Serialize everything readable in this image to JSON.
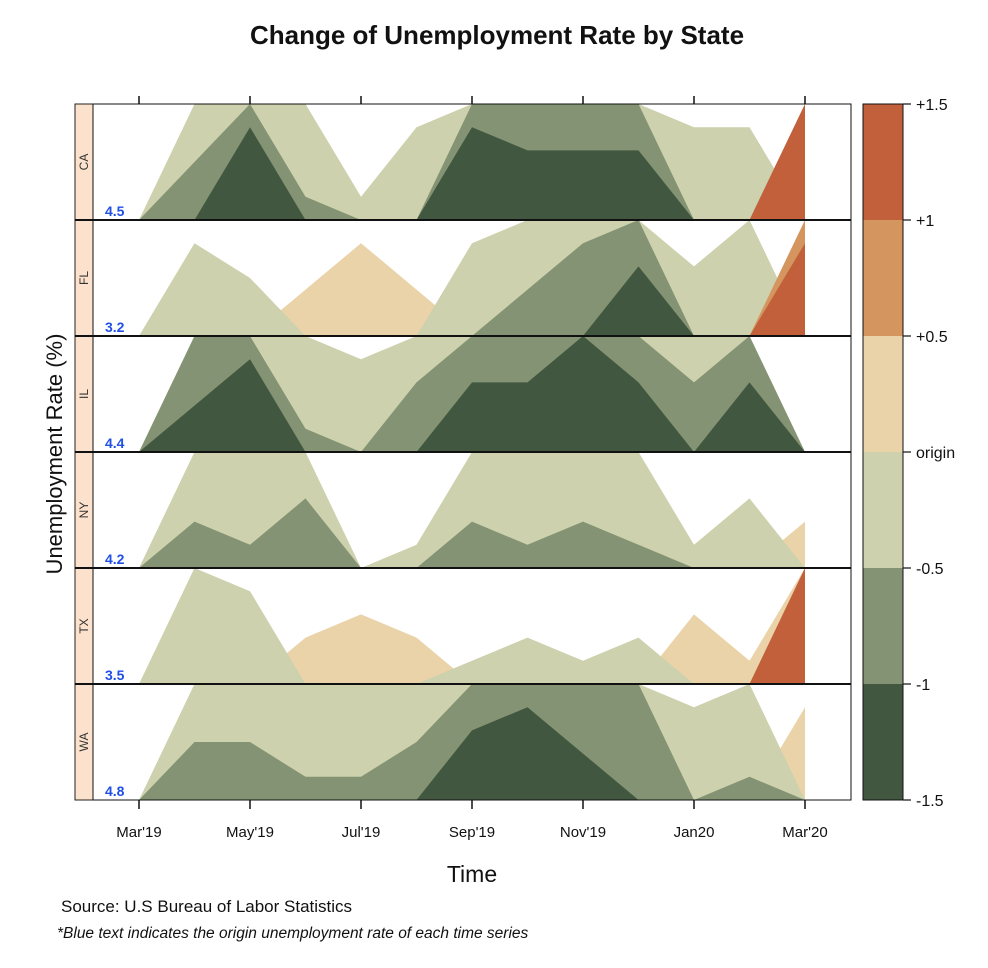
{
  "chart_data": {
    "type": "area",
    "subtype": "horizon",
    "title": "Change of Unemployment Rate by State",
    "xlabel": "Time",
    "ylabel": "Unemployment Rate (%)",
    "x_dates": [
      "2019-03",
      "2019-04",
      "2019-05",
      "2019-06",
      "2019-07",
      "2019-08",
      "2019-09",
      "2019-10",
      "2019-11",
      "2019-12",
      "2020-01",
      "2020-02",
      "2020-03"
    ],
    "x_tick_labels": [
      "Mar'19",
      "May'19",
      "Jul'19",
      "Sep'19",
      "Nov'19",
      "Jan20",
      "Mar'20"
    ],
    "band_unit": 0.5,
    "ylim": [
      -1.5,
      1.5
    ],
    "series": [
      {
        "name": "CA",
        "origin_label": "4.5",
        "values": [
          0,
          -0.75,
          -1.4,
          -0.6,
          -0.1,
          -0.4,
          -1.4,
          -1.3,
          -1.3,
          -1.3,
          -0.4,
          -0.4,
          1.5
        ]
      },
      {
        "name": "FL",
        "origin_label": "3.2",
        "values": [
          0,
          -0.4,
          -0.25,
          0.2,
          0.4,
          0.2,
          -0.4,
          -0.7,
          -0.9,
          -1.3,
          -0.3,
          -0.5,
          1.4
        ]
      },
      {
        "name": "IL",
        "origin_label": "4.4",
        "values": [
          0,
          -1.2,
          -1.4,
          -0.6,
          -0.4,
          -0.8,
          -1.3,
          -1.3,
          -1.5,
          -1.3,
          -0.8,
          -1.3,
          0
        ]
      },
      {
        "name": "NY",
        "origin_label": "4.2",
        "values": [
          0,
          -0.7,
          -0.6,
          -0.8,
          0,
          -0.1,
          -0.7,
          -0.6,
          -0.7,
          -0.6,
          -0.1,
          -0.3,
          0.2
        ]
      },
      {
        "name": "TX",
        "origin_label": "3.5",
        "values": [
          0,
          -0.5,
          -0.4,
          0.2,
          0.3,
          0.2,
          -0.1,
          -0.2,
          -0.1,
          -0.2,
          0.3,
          0.1,
          1.5
        ]
      },
      {
        "name": "WA",
        "origin_label": "4.8",
        "values": [
          0,
          -0.75,
          -0.75,
          -0.6,
          -0.6,
          -0.75,
          -1.3,
          -1.4,
          -1.2,
          -1.0,
          -0.4,
          -0.6,
          0.4
        ]
      }
    ],
    "legend": {
      "position": "right",
      "labels": [
        "+1.5",
        "+1",
        "+0.5",
        "origin",
        "-0.5",
        "-1",
        "-1.5"
      ],
      "colors_top_to_bottom": [
        "#C1603A",
        "#D5955F",
        "#EAD3A8",
        "#CDD1AD",
        "#849373",
        "#42573F"
      ]
    },
    "colors": {
      "pos1": "#EAD3A8",
      "pos2": "#D5955F",
      "pos3": "#C1603A",
      "neg1": "#CDD1AD",
      "neg2": "#849373",
      "neg3": "#42573F",
      "strip": "#FCE2CC",
      "origin_text": "#1F4FE6"
    }
  },
  "footer": {
    "source": "Source: U.S Bureau of Labor Statistics",
    "note": "*Blue text indicates the origin unemployment rate of each time series"
  }
}
